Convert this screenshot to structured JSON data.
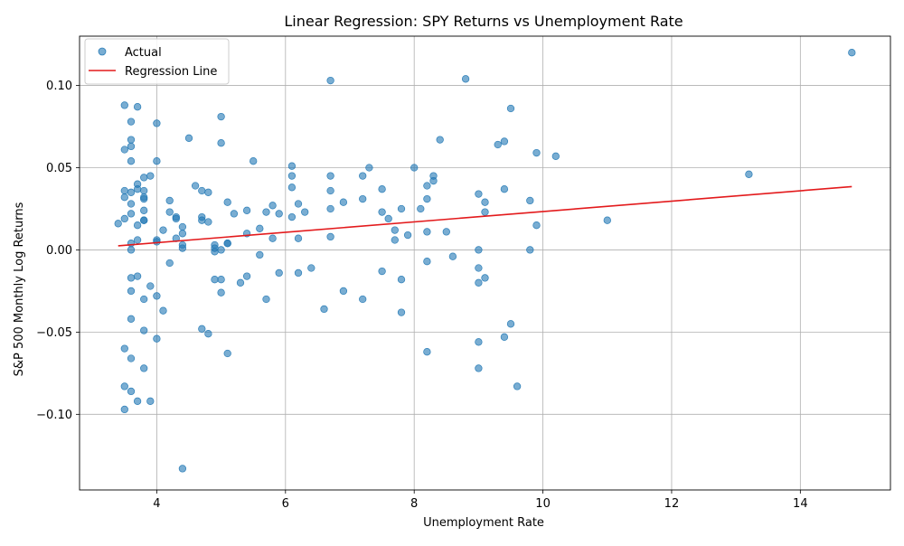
{
  "chart_data": {
    "type": "scatter",
    "title": "Linear Regression: SPY Returns vs Unemployment Rate",
    "xlabel": "Unemployment Rate",
    "ylabel": "S&P 500 Monthly Log Returns",
    "xlim": [
      2.8,
      15.4
    ],
    "ylim": [
      -0.146,
      0.13
    ],
    "xticks": [
      4,
      6,
      8,
      10,
      12,
      14
    ],
    "yticks": [
      -0.1,
      -0.05,
      0.0,
      0.05,
      0.1
    ],
    "xtick_labels": [
      "4",
      "6",
      "8",
      "10",
      "12",
      "14"
    ],
    "ytick_labels": [
      "−0.10",
      "−0.05",
      "0.00",
      "0.05",
      "0.10"
    ],
    "grid": true,
    "legend_position": "top-left",
    "series": [
      {
        "name": "Actual",
        "kind": "scatter",
        "color": "#1f77b4",
        "points": [
          [
            3.4,
            0.016
          ],
          [
            3.5,
            0.088
          ],
          [
            3.5,
            0.061
          ],
          [
            3.5,
            0.036
          ],
          [
            3.5,
            0.032
          ],
          [
            3.5,
            0.019
          ],
          [
            3.5,
            -0.06
          ],
          [
            3.5,
            -0.083
          ],
          [
            3.5,
            -0.097
          ],
          [
            3.6,
            0.078
          ],
          [
            3.6,
            0.067
          ],
          [
            3.6,
            0.063
          ],
          [
            3.6,
            0.054
          ],
          [
            3.6,
            0.035
          ],
          [
            3.6,
            0.028
          ],
          [
            3.6,
            0.022
          ],
          [
            3.6,
            0.004
          ],
          [
            3.6,
            0.0
          ],
          [
            3.6,
            -0.017
          ],
          [
            3.6,
            -0.025
          ],
          [
            3.6,
            -0.042
          ],
          [
            3.6,
            -0.066
          ],
          [
            3.6,
            -0.086
          ],
          [
            3.7,
            0.087
          ],
          [
            3.7,
            0.04
          ],
          [
            3.7,
            0.037
          ],
          [
            3.7,
            0.015
          ],
          [
            3.7,
            0.006
          ],
          [
            3.7,
            -0.016
          ],
          [
            3.7,
            -0.092
          ],
          [
            3.8,
            0.044
          ],
          [
            3.8,
            0.036
          ],
          [
            3.8,
            0.032
          ],
          [
            3.8,
            0.031
          ],
          [
            3.8,
            0.024
          ],
          [
            3.8,
            0.018
          ],
          [
            3.8,
            0.018
          ],
          [
            3.8,
            -0.03
          ],
          [
            3.8,
            -0.049
          ],
          [
            3.8,
            -0.072
          ],
          [
            3.9,
            0.045
          ],
          [
            3.9,
            -0.022
          ],
          [
            3.9,
            -0.092
          ],
          [
            4.0,
            0.077
          ],
          [
            4.0,
            0.054
          ],
          [
            4.0,
            0.005
          ],
          [
            4.0,
            0.006
          ],
          [
            4.0,
            -0.028
          ],
          [
            4.0,
            -0.054
          ],
          [
            4.1,
            0.012
          ],
          [
            4.1,
            -0.037
          ],
          [
            4.2,
            0.03
          ],
          [
            4.2,
            0.023
          ],
          [
            4.2,
            -0.008
          ],
          [
            4.3,
            0.02
          ],
          [
            4.3,
            0.019
          ],
          [
            4.3,
            0.007
          ],
          [
            4.4,
            0.014
          ],
          [
            4.4,
            0.01
          ],
          [
            4.4,
            0.003
          ],
          [
            4.4,
            0.001
          ],
          [
            4.4,
            -0.133
          ],
          [
            4.5,
            0.068
          ],
          [
            4.6,
            0.039
          ],
          [
            4.7,
            0.036
          ],
          [
            4.7,
            0.02
          ],
          [
            4.7,
            0.018
          ],
          [
            4.7,
            -0.048
          ],
          [
            4.8,
            0.035
          ],
          [
            4.8,
            0.017
          ],
          [
            4.8,
            -0.051
          ],
          [
            4.9,
            0.003
          ],
          [
            4.9,
            0.001
          ],
          [
            4.9,
            -0.001
          ],
          [
            4.9,
            -0.018
          ],
          [
            5.0,
            0.081
          ],
          [
            5.0,
            0.065
          ],
          [
            5.0,
            0.0
          ],
          [
            5.0,
            -0.018
          ],
          [
            5.0,
            -0.026
          ],
          [
            5.1,
            0.029
          ],
          [
            5.1,
            0.004
          ],
          [
            5.1,
            0.004
          ],
          [
            5.1,
            -0.063
          ],
          [
            5.2,
            0.022
          ],
          [
            5.3,
            -0.02
          ],
          [
            5.4,
            0.024
          ],
          [
            5.4,
            0.01
          ],
          [
            5.4,
            -0.016
          ],
          [
            5.5,
            0.054
          ],
          [
            5.6,
            0.013
          ],
          [
            5.6,
            -0.003
          ],
          [
            5.7,
            0.023
          ],
          [
            5.7,
            -0.03
          ],
          [
            5.8,
            0.027
          ],
          [
            5.8,
            0.007
          ],
          [
            5.9,
            0.022
          ],
          [
            5.9,
            -0.014
          ],
          [
            6.1,
            0.051
          ],
          [
            6.1,
            0.045
          ],
          [
            6.1,
            0.038
          ],
          [
            6.1,
            0.02
          ],
          [
            6.2,
            0.028
          ],
          [
            6.2,
            0.007
          ],
          [
            6.2,
            -0.014
          ],
          [
            6.3,
            0.023
          ],
          [
            6.4,
            -0.011
          ],
          [
            6.6,
            -0.036
          ],
          [
            6.7,
            0.103
          ],
          [
            6.7,
            0.045
          ],
          [
            6.7,
            0.036
          ],
          [
            6.7,
            0.025
          ],
          [
            6.7,
            0.008
          ],
          [
            6.9,
            0.029
          ],
          [
            6.9,
            -0.025
          ],
          [
            7.2,
            0.045
          ],
          [
            7.2,
            0.031
          ],
          [
            7.2,
            -0.03
          ],
          [
            7.3,
            0.05
          ],
          [
            7.5,
            0.037
          ],
          [
            7.5,
            0.023
          ],
          [
            7.5,
            -0.013
          ],
          [
            7.6,
            0.019
          ],
          [
            7.7,
            0.012
          ],
          [
            7.7,
            0.006
          ],
          [
            7.8,
            0.025
          ],
          [
            7.8,
            -0.018
          ],
          [
            7.8,
            -0.038
          ],
          [
            7.9,
            0.009
          ],
          [
            8.0,
            0.05
          ],
          [
            8.1,
            0.025
          ],
          [
            8.2,
            0.039
          ],
          [
            8.2,
            0.031
          ],
          [
            8.2,
            0.011
          ],
          [
            8.2,
            -0.007
          ],
          [
            8.2,
            -0.062
          ],
          [
            8.3,
            0.045
          ],
          [
            8.3,
            0.042
          ],
          [
            8.4,
            0.067
          ],
          [
            8.5,
            0.011
          ],
          [
            8.6,
            -0.004
          ],
          [
            8.8,
            0.104
          ],
          [
            9.0,
            0.034
          ],
          [
            9.0,
            0.0
          ],
          [
            9.0,
            -0.011
          ],
          [
            9.0,
            -0.02
          ],
          [
            9.0,
            -0.056
          ],
          [
            9.0,
            -0.072
          ],
          [
            9.1,
            0.029
          ],
          [
            9.1,
            0.023
          ],
          [
            9.1,
            -0.017
          ],
          [
            9.3,
            0.064
          ],
          [
            9.4,
            0.066
          ],
          [
            9.4,
            0.037
          ],
          [
            9.4,
            -0.053
          ],
          [
            9.5,
            0.086
          ],
          [
            9.5,
            -0.045
          ],
          [
            9.6,
            -0.083
          ],
          [
            9.8,
            0.03
          ],
          [
            9.8,
            0.0
          ],
          [
            9.9,
            0.059
          ],
          [
            9.9,
            0.015
          ],
          [
            10.2,
            0.057
          ],
          [
            11.0,
            0.018
          ],
          [
            13.2,
            0.046
          ],
          [
            14.8,
            0.12
          ]
        ]
      },
      {
        "name": "Regression Line",
        "kind": "line",
        "color": "#e31a1c",
        "x": [
          3.4,
          14.8
        ],
        "y": [
          0.0025,
          0.0385
        ]
      }
    ]
  }
}
